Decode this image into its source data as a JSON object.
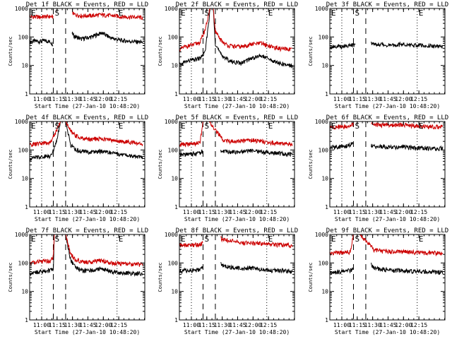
{
  "colors": {
    "events": "#000000",
    "lld": "#cc0000",
    "axes": "#000000"
  },
  "ylabel": "Counts/sec",
  "xlabel": "Start Time (27-Jan-10 10:48:20)",
  "markers": {
    "S": "S",
    "E": "E"
  },
  "chart_data": [
    {
      "type": "line",
      "title": "Det 1f BLACK = Events, RED = LLD",
      "x_ticks": [
        "11:00",
        "11:15",
        "11:30",
        "11:45",
        "12:00",
        "12:15"
      ],
      "ylim": [
        1,
        1000
      ],
      "ylog": true,
      "y_tick_labels": [
        "1",
        "10",
        "100",
        "1000"
      ],
      "ylabel": "Counts/sec",
      "xlabel": "Start Time (27-Jan-10 10:48:20)",
      "lld_present": true,
      "series": [
        {
          "name": "Events",
          "x_min": [
            0,
            5,
            10,
            15,
            20,
            23,
            24.5,
            41,
            43,
            50,
            60,
            70,
            80,
            90,
            100,
            110
          ],
          "values": [
            65,
            72,
            70,
            75,
            68,
            55,
            null,
            140,
            110,
            85,
            100,
            140,
            90,
            75,
            70,
            65
          ]
        },
        {
          "name": "LLD",
          "x_min": [
            0,
            5,
            10,
            15,
            20,
            23,
            24.5,
            41,
            43,
            50,
            60,
            70,
            80,
            90,
            100,
            110
          ],
          "values": [
            500,
            520,
            500,
            520,
            520,
            500,
            null,
            800,
            620,
            560,
            560,
            600,
            560,
            520,
            500,
            480
          ]
        }
      ]
    },
    {
      "type": "line",
      "title": "Det 2f BLACK = Events, RED = LLD",
      "x_ticks": [
        "11:00",
        "11:15",
        "11:30",
        "11:45",
        "12:00",
        "12:15"
      ],
      "ylim": [
        1,
        1000
      ],
      "ylog": true,
      "y_tick_labels": [
        "1",
        "10",
        "100",
        "1000"
      ],
      "ylabel": "Counts/sec",
      "xlabel": "Start Time (27-Jan-10 10:48:20)",
      "lld_present": true,
      "series": [
        {
          "name": "Events",
          "x_min": [
            0,
            5,
            10,
            15,
            20,
            25,
            30,
            33,
            35,
            40,
            45,
            50,
            60,
            70,
            80,
            90,
            100,
            110
          ],
          "values": [
            10,
            13,
            15,
            16,
            18,
            28,
            1000,
            1000,
            60,
            25,
            18,
            14,
            12,
            18,
            22,
            15,
            11,
            10
          ]
        },
        {
          "name": "LLD",
          "x_min": [
            0,
            5,
            10,
            15,
            20,
            25,
            30,
            33,
            35,
            40,
            45,
            50,
            60,
            70,
            80,
            90,
            100,
            110
          ],
          "values": [
            35,
            45,
            50,
            55,
            65,
            180,
            1000,
            1000,
            150,
            80,
            55,
            48,
            45,
            55,
            60,
            45,
            38,
            36
          ]
        }
      ]
    },
    {
      "type": "line",
      "title": "Det 3f BLACK = Events, RED = LLD",
      "x_ticks": [
        "11:00",
        "11:15",
        "11:30",
        "11:45",
        "12:00",
        "12:15"
      ],
      "ylim": [
        1,
        1000
      ],
      "ylog": true,
      "y_tick_labels": [
        "1",
        "10",
        "100",
        "1000"
      ],
      "ylabel": "Counts/sec",
      "xlabel": "Start Time (27-Jan-10 10:48:20)",
      "lld_present": false,
      "series": [
        {
          "name": "Events",
          "x_min": [
            0,
            5,
            10,
            15,
            20,
            25,
            26,
            40,
            42,
            50,
            60,
            70,
            80,
            90,
            100,
            110
          ],
          "values": [
            45,
            48,
            45,
            50,
            50,
            55,
            null,
            70,
            55,
            55,
            50,
            55,
            52,
            50,
            48,
            45
          ]
        }
      ]
    },
    {
      "type": "line",
      "title": "Det 4f BLACK = Events, RED = LLD",
      "x_ticks": [
        "11:00",
        "11:15",
        "11:30",
        "11:45",
        "12:00",
        "12:15"
      ],
      "ylim": [
        1,
        1000
      ],
      "ylog": true,
      "y_tick_labels": [
        "1",
        "10",
        "100",
        "1000"
      ],
      "ylabel": "Counts/sec",
      "xlabel": "Start Time (27-Jan-10 10:48:20)",
      "lld_present": true,
      "series": [
        {
          "name": "Events",
          "x_min": [
            0,
            5,
            10,
            15,
            20,
            25,
            30,
            35,
            40,
            45,
            50,
            60,
            70,
            80,
            90,
            100,
            110
          ],
          "values": [
            50,
            55,
            58,
            60,
            62,
            140,
            1000,
            1000,
            150,
            100,
            90,
            85,
            90,
            80,
            70,
            60,
            55
          ]
        },
        {
          "name": "LLD",
          "x_min": [
            0,
            5,
            10,
            15,
            20,
            25,
            30,
            35,
            40,
            45,
            50,
            60,
            70,
            80,
            90,
            100,
            110
          ],
          "values": [
            150,
            160,
            170,
            175,
            180,
            400,
            1000,
            1000,
            450,
            320,
            260,
            240,
            250,
            220,
            200,
            180,
            160
          ]
        }
      ]
    },
    {
      "type": "line",
      "title": "Det 5f BLACK = Events, RED = LLD",
      "x_ticks": [
        "11:00",
        "11:15",
        "11:30",
        "11:45",
        "12:00",
        "12:15"
      ],
      "ylim": [
        1,
        1000
      ],
      "ylog": true,
      "y_tick_labels": [
        "1",
        "10",
        "100",
        "1000"
      ],
      "ylabel": "Counts/sec",
      "xlabel": "Start Time (27-Jan-10 10:48:20)",
      "lld_present": true,
      "series": [
        {
          "name": "Events",
          "x_min": [
            0,
            5,
            10,
            15,
            20,
            23,
            24.5,
            40,
            42,
            50,
            60,
            70,
            80,
            90,
            100,
            110
          ],
          "values": [
            65,
            70,
            72,
            75,
            80,
            90,
            null,
            100,
            90,
            85,
            90,
            95,
            85,
            80,
            75,
            70
          ]
        },
        {
          "name": "LLD",
          "x_min": [
            0,
            5,
            10,
            15,
            20,
            23,
            24.5,
            29,
            40,
            42,
            50,
            60,
            70,
            80,
            90,
            100,
            110
          ],
          "values": [
            150,
            160,
            160,
            170,
            180,
            1000,
            1000,
            1000,
            300,
            220,
            200,
            210,
            220,
            200,
            180,
            170,
            160
          ]
        }
      ]
    },
    {
      "type": "line",
      "title": "Det 6f BLACK = Events, RED = LLD",
      "x_ticks": [
        "11:00",
        "11:15",
        "11:30",
        "11:45",
        "12:00",
        "12:15"
      ],
      "ylim": [
        1,
        1000
      ],
      "ylog": true,
      "y_tick_labels": [
        "1",
        "10",
        "100",
        "1000"
      ],
      "ylabel": "Counts/sec",
      "xlabel": "Start Time (27-Jan-10 10:48:20)",
      "lld_present": true,
      "series": [
        {
          "name": "Events",
          "x_min": [
            0,
            5,
            10,
            15,
            20,
            23,
            24.5,
            40,
            42,
            50,
            60,
            70,
            80,
            90,
            100,
            110
          ],
          "values": [
            120,
            130,
            130,
            135,
            150,
            180,
            null,
            150,
            130,
            130,
            125,
            130,
            120,
            115,
            110,
            115
          ]
        },
        {
          "name": "LLD",
          "x_min": [
            0,
            5,
            10,
            15,
            20,
            23,
            24.5,
            40,
            42,
            50,
            60,
            70,
            80,
            90,
            100,
            110
          ],
          "values": [
            600,
            620,
            640,
            650,
            700,
            800,
            null,
            900,
            760,
            750,
            740,
            760,
            720,
            680,
            650,
            640
          ]
        }
      ]
    },
    {
      "type": "line",
      "title": "Det 7f BLACK = Events, RED = LLD",
      "x_ticks": [
        "11:00",
        "11:15",
        "11:30",
        "11:45",
        "12:00",
        "12:15"
      ],
      "ylim": [
        1,
        1000
      ],
      "ylog": true,
      "y_tick_labels": [
        "1",
        "10",
        "100",
        "1000"
      ],
      "ylabel": "Counts/sec",
      "xlabel": "Start Time (27-Jan-10 10:48:20)",
      "lld_present": true,
      "series": [
        {
          "name": "Events",
          "x_min": [
            0,
            5,
            10,
            15,
            20,
            23,
            24,
            30,
            35,
            40,
            45,
            50,
            60,
            70,
            80,
            90,
            100,
            110
          ],
          "values": [
            45,
            48,
            50,
            52,
            55,
            60,
            1000,
            1000,
            1000,
            120,
            70,
            55,
            55,
            65,
            50,
            45,
            43,
            42
          ]
        },
        {
          "name": "LLD",
          "x_min": [
            0,
            5,
            10,
            15,
            20,
            23,
            24,
            30,
            35,
            40,
            45,
            50,
            60,
            70,
            80,
            90,
            100,
            110
          ],
          "values": [
            100,
            105,
            110,
            115,
            120,
            150,
            1000,
            1000,
            1000,
            200,
            130,
            110,
            110,
            120,
            100,
            95,
            90,
            88
          ]
        }
      ]
    },
    {
      "type": "line",
      "title": "Det 8f BLACK = Events, RED = LLD",
      "x_ticks": [
        "11:00",
        "11:15",
        "11:30",
        "11:45",
        "12:00",
        "12:15"
      ],
      "ylim": [
        1,
        1000
      ],
      "ylog": true,
      "y_tick_labels": [
        "1",
        "10",
        "100",
        "1000"
      ],
      "ylabel": "Counts/sec",
      "xlabel": "Start Time (27-Jan-10 10:48:20)",
      "lld_present": true,
      "series": [
        {
          "name": "Events",
          "x_min": [
            0,
            5,
            10,
            15,
            20,
            23,
            24.5,
            40,
            42,
            50,
            60,
            70,
            80,
            90,
            100,
            110
          ],
          "values": [
            50,
            55,
            55,
            55,
            60,
            70,
            null,
            100,
            80,
            70,
            65,
            65,
            60,
            55,
            55,
            50
          ]
        },
        {
          "name": "LLD",
          "x_min": [
            0,
            5,
            10,
            15,
            20,
            23,
            24.5,
            40,
            42,
            50,
            60,
            70,
            80,
            90,
            100,
            110
          ],
          "values": [
            400,
            420,
            420,
            430,
            450,
            500,
            null,
            800,
            650,
            600,
            520,
            500,
            480,
            450,
            430,
            400
          ]
        }
      ]
    },
    {
      "type": "line",
      "title": "Det 9f BLACK = Events, RED = LLD",
      "x_ticks": [
        "11:00",
        "11:15",
        "11:30",
        "11:45",
        "12:00",
        "12:15"
      ],
      "ylim": [
        1,
        1000
      ],
      "ylog": true,
      "y_tick_labels": [
        "1",
        "10",
        "100",
        "1000"
      ],
      "ylabel": "Counts/sec",
      "xlabel": "Start Time (27-Jan-10 10:48:20)",
      "lld_present": true,
      "series": [
        {
          "name": "Events",
          "x_min": [
            0,
            5,
            10,
            15,
            20,
            23,
            24.5,
            40,
            42,
            50,
            60,
            70,
            80,
            90,
            100,
            110
          ],
          "values": [
            45,
            48,
            50,
            52,
            55,
            60,
            null,
            110,
            70,
            60,
            55,
            55,
            52,
            50,
            48,
            47
          ]
        },
        {
          "name": "LLD",
          "x_min": [
            0,
            5,
            10,
            15,
            20,
            23,
            24.5,
            29,
            40,
            42,
            50,
            60,
            70,
            80,
            90,
            100,
            110
          ],
          "values": [
            220,
            230,
            230,
            240,
            250,
            1000,
            1000,
            1000,
            400,
            300,
            260,
            250,
            250,
            240,
            230,
            225,
            220
          ]
        }
      ]
    }
  ]
}
